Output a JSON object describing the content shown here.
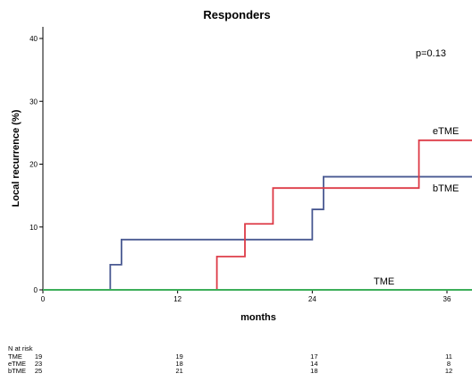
{
  "chart_data": {
    "type": "line",
    "title": "Responders",
    "xlabel": "months",
    "ylabel": "Local recurrence (%)",
    "xlim": [
      0,
      36
    ],
    "ylim": [
      0,
      40
    ],
    "x_ticks": [
      "0",
      "12",
      "24",
      "36"
    ],
    "y_ticks": [
      "0",
      "10",
      "20",
      "30",
      "40"
    ],
    "annotation": "p=0.13",
    "step": true,
    "series": [
      {
        "name": "TME",
        "color": "#3cae5a",
        "x": [
          0,
          36
        ],
        "y": [
          0,
          0
        ]
      },
      {
        "name": "eTME",
        "color": "#dd3b47",
        "x": [
          0,
          15.5,
          18,
          20.5,
          33.5,
          36
        ],
        "y": [
          0,
          5.3,
          10.5,
          16.2,
          23.8,
          23.8
        ]
      },
      {
        "name": "bTME",
        "color": "#4a5a92",
        "x": [
          0,
          6,
          7,
          24,
          25,
          36
        ],
        "y": [
          0,
          4,
          8,
          12.8,
          18,
          18
        ]
      }
    ]
  },
  "risk_table": {
    "header": "N at risk",
    "rows": [
      {
        "label": "TME",
        "values": [
          "19",
          "19",
          "17",
          "11"
        ]
      },
      {
        "label": "eTME",
        "values": [
          "23",
          "18",
          "14",
          "8"
        ]
      },
      {
        "label": "bTME",
        "values": [
          "25",
          "21",
          "18",
          "12"
        ]
      }
    ]
  }
}
